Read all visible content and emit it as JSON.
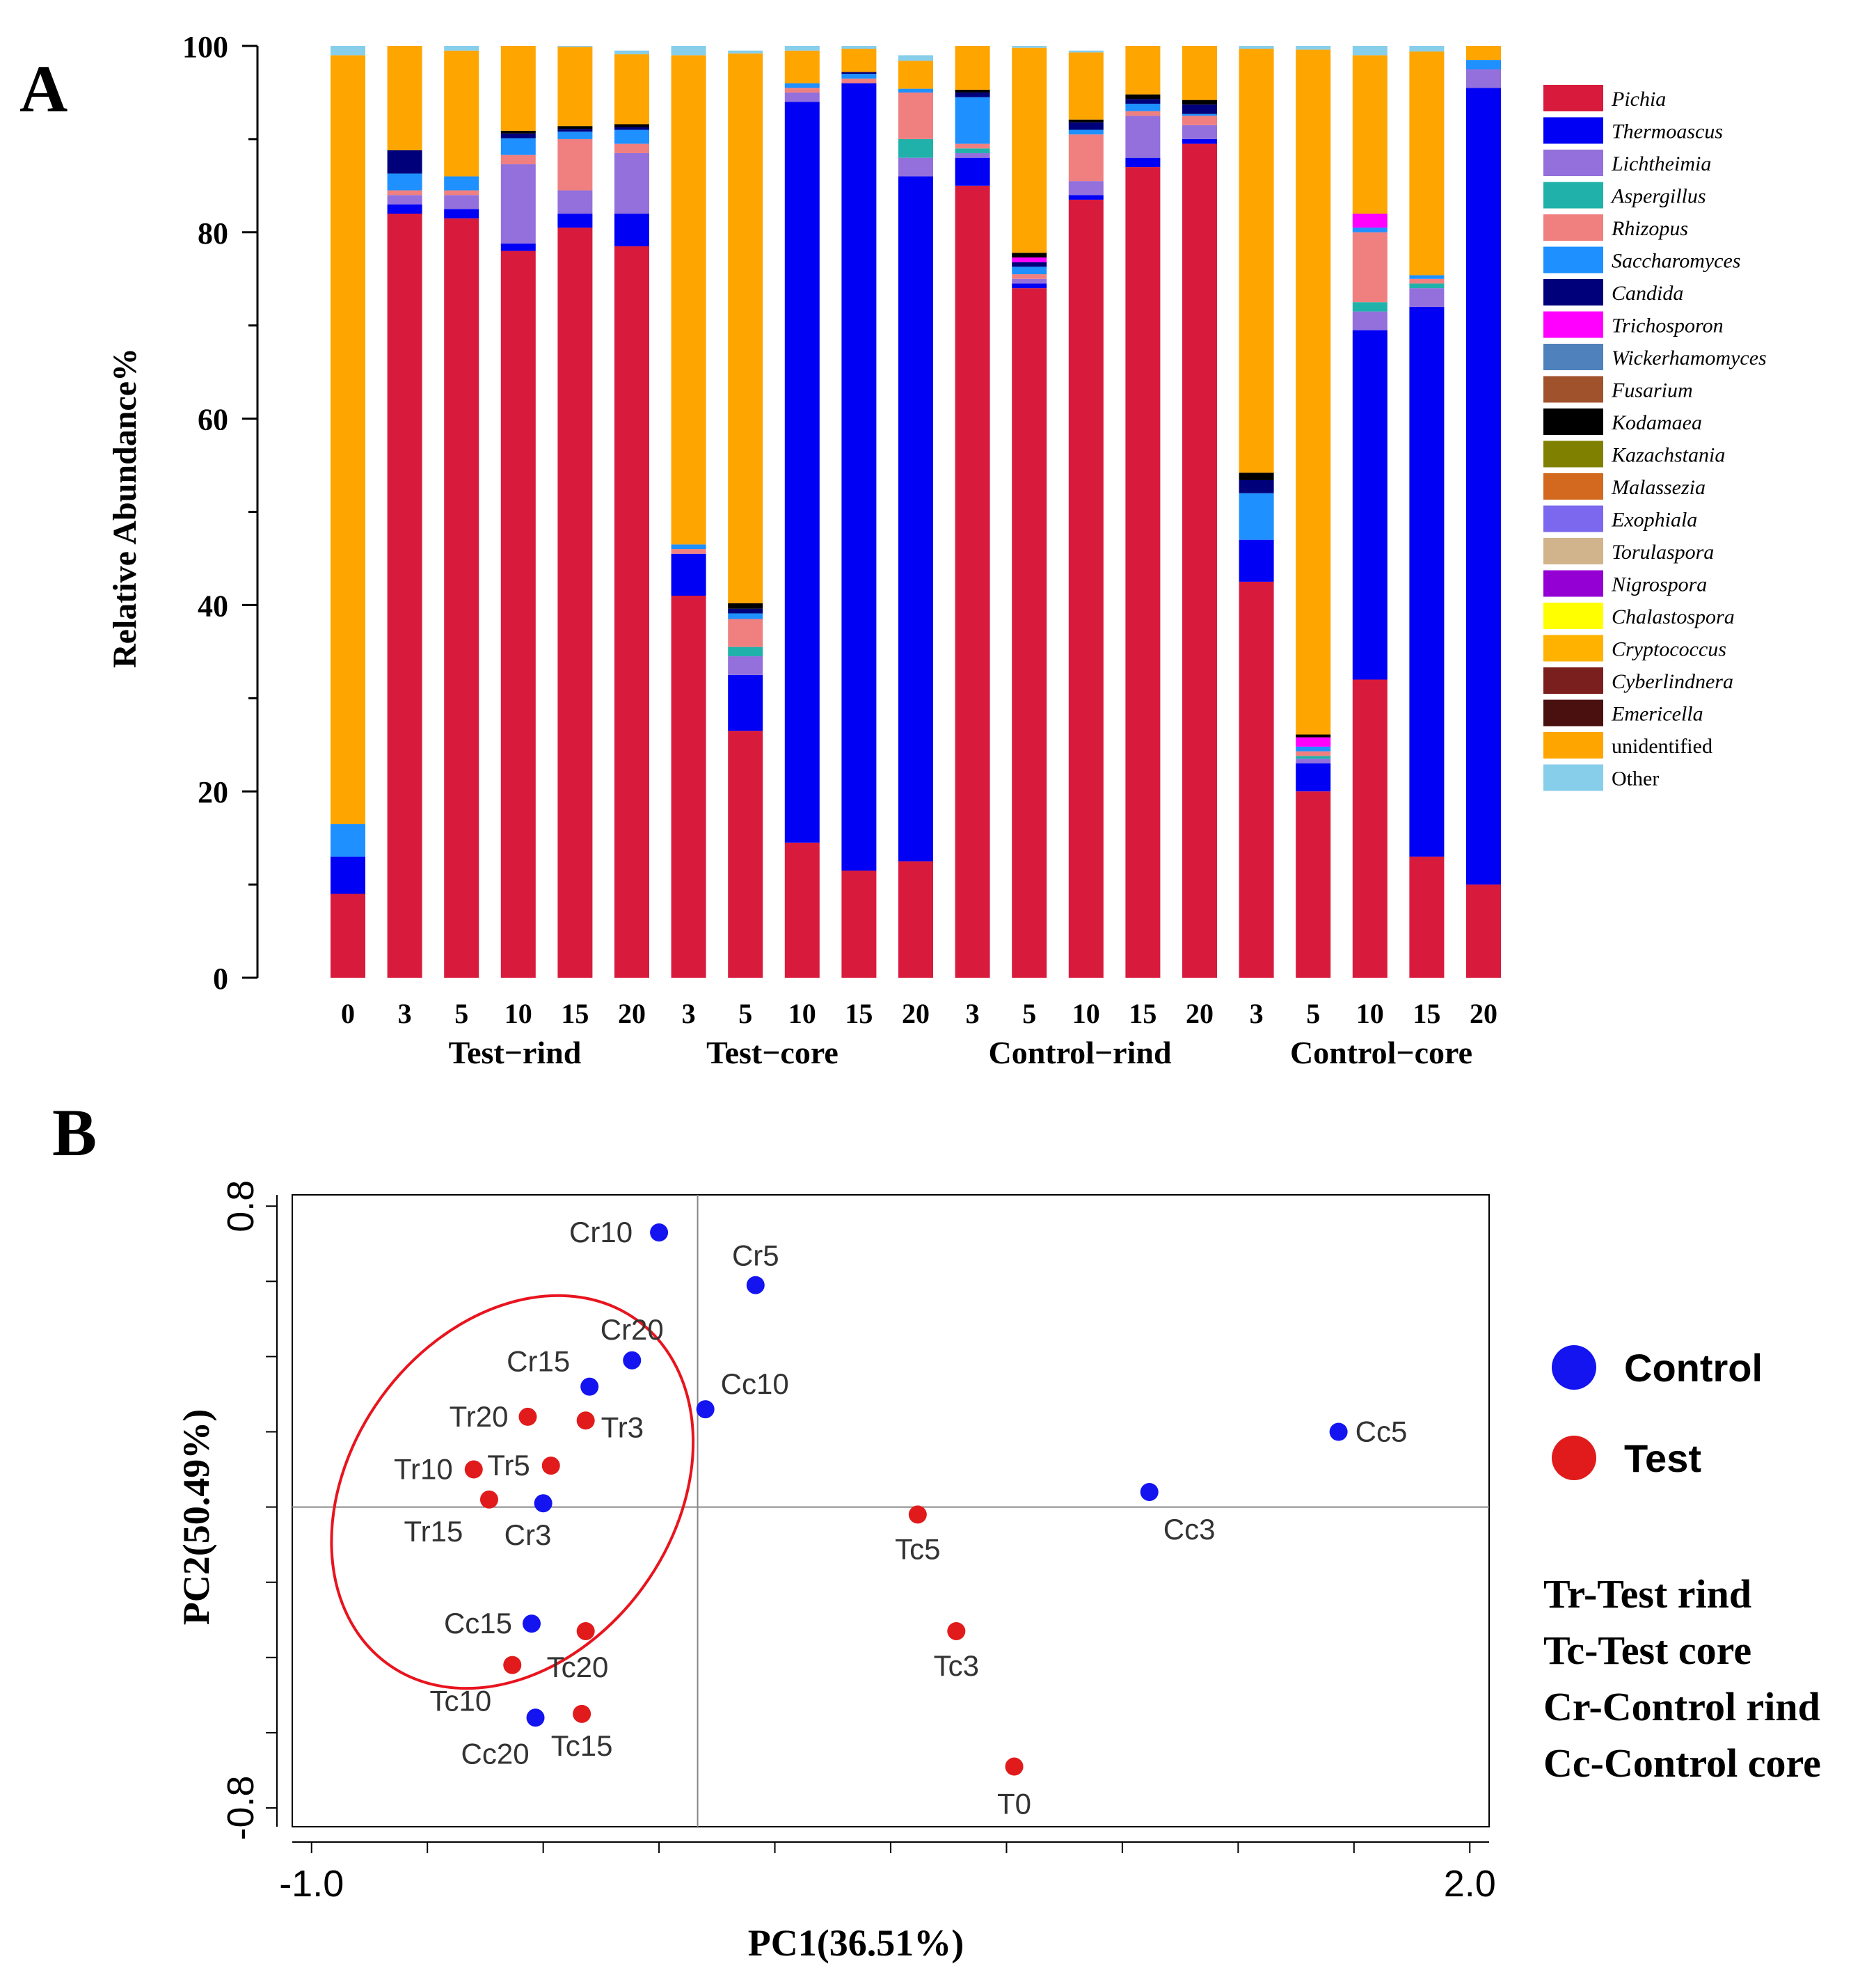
{
  "panel_a_label": "A",
  "panel_b_label": "B",
  "chart_data": [
    {
      "type": "bar",
      "stacked": true,
      "ylabel": "Relative Abundance%",
      "ylim": [
        0,
        100
      ],
      "yticks": [
        0,
        20,
        40,
        60,
        80,
        100
      ],
      "categories": [
        "0",
        "3",
        "5",
        "10",
        "15",
        "20",
        "3",
        "5",
        "10",
        "15",
        "20",
        "3",
        "5",
        "10",
        "15",
        "20",
        "3",
        "5",
        "10",
        "15",
        "20"
      ],
      "groups": [
        {
          "label": "Test−rind"
        },
        {
          "label": "Test−core"
        },
        {
          "label": "Control−rind"
        },
        {
          "label": "Control−core"
        }
      ],
      "legend": [
        {
          "name": "Pichia",
          "color": "#d81b3c"
        },
        {
          "name": "Thermoascus",
          "color": "#0000f5"
        },
        {
          "name": "Lichtheimia",
          "color": "#9370db"
        },
        {
          "name": "Aspergillus",
          "color": "#20b2aa"
        },
        {
          "name": "Rhizopus",
          "color": "#f08080"
        },
        {
          "name": "Saccharomyces",
          "color": "#1e90ff"
        },
        {
          "name": "Candida",
          "color": "#00007a"
        },
        {
          "name": "Trichosporon",
          "color": "#ff00ff"
        },
        {
          "name": "Wickerhamomyces",
          "color": "#4f81bd"
        },
        {
          "name": "Fusarium",
          "color": "#a0522d"
        },
        {
          "name": "Kodamaea",
          "color": "#000000"
        },
        {
          "name": "Kazachstania",
          "color": "#808000"
        },
        {
          "name": "Malassezia",
          "color": "#d2691e"
        },
        {
          "name": "Exophiala",
          "color": "#7b68ee"
        },
        {
          "name": "Torulaspora",
          "color": "#d2b48c"
        },
        {
          "name": "Nigrospora",
          "color": "#9400d3"
        },
        {
          "name": "Chalastospora",
          "color": "#ffff00"
        },
        {
          "name": "Cryptococcus",
          "color": "#ffb300"
        },
        {
          "name": "Cyberlindnera",
          "color": "#7b1e1e"
        },
        {
          "name": "Emericella",
          "color": "#4a0f0f"
        },
        {
          "name": "unidentified",
          "color": "#ffa500"
        },
        {
          "name": "Other",
          "color": "#87ceeb"
        }
      ],
      "series": [
        {
          "name": "Pichia",
          "values": [
            9,
            82,
            81.5,
            78,
            80.5,
            78.5,
            41,
            26.5,
            14.5,
            11.5,
            12.5,
            85,
            74,
            83.5,
            87,
            89.5,
            42.5,
            20,
            32,
            13,
            10
          ]
        },
        {
          "name": "Thermoascus",
          "values": [
            4,
            1,
            1,
            0.8,
            1.5,
            3.5,
            4.5,
            6,
            79.5,
            84.5,
            73.5,
            3,
            0.5,
            0.5,
            1,
            0.5,
            4.5,
            3,
            37.5,
            59,
            85.5
          ]
        },
        {
          "name": "Lichtheimia",
          "values": [
            0,
            1,
            1.5,
            8.5,
            2.5,
            6.5,
            0,
            2,
            1,
            0,
            2,
            0.5,
            0.5,
            1.5,
            4.5,
            1.5,
            0,
            0.5,
            2,
            2,
            2
          ]
        },
        {
          "name": "Aspergillus",
          "values": [
            0,
            0,
            0,
            0,
            0,
            0,
            0,
            1,
            0,
            0,
            2,
            0.5,
            0,
            0,
            0,
            0,
            0,
            0.3,
            1,
            0.5,
            0
          ]
        },
        {
          "name": "Rhizopus",
          "values": [
            0,
            0.5,
            0.5,
            1,
            5.5,
            1,
            0.5,
            3,
            0.5,
            0.5,
            5,
            0.5,
            0.5,
            5,
            0.5,
            1,
            0,
            0.5,
            7.5,
            0.5,
            0
          ]
        },
        {
          "name": "Saccharomyces",
          "values": [
            3.5,
            1.8,
            1.5,
            1.8,
            0.8,
            1.5,
            0.5,
            0.6,
            0.5,
            0.5,
            0.4,
            5,
            0.8,
            0.5,
            0.8,
            0.2,
            5,
            0.5,
            0.5,
            0.4,
            1
          ]
        },
        {
          "name": "Candida",
          "values": [
            0,
            2.5,
            0,
            0.5,
            0.3,
            0.3,
            0,
            0.5,
            0,
            0.2,
            0,
            0.5,
            0.5,
            0.8,
            0.5,
            1,
            1.4,
            0,
            0,
            0,
            0
          ]
        },
        {
          "name": "Trichosporon",
          "values": [
            0,
            0,
            0,
            0,
            0,
            0,
            0,
            0,
            0,
            0,
            0,
            0,
            0.5,
            0,
            0,
            0,
            0,
            1,
            1.5,
            0,
            0
          ]
        },
        {
          "name": "Kodamaea",
          "values": [
            0,
            0,
            0,
            0.3,
            0.3,
            0.3,
            0,
            0.6,
            0,
            0,
            0,
            0.3,
            0.5,
            0.3,
            0.5,
            0.5,
            0.8,
            0.3,
            0,
            0,
            0
          ]
        },
        {
          "name": "unidentified",
          "values": [
            82.5,
            11.5,
            13.5,
            9.5,
            8.5,
            7.5,
            52.5,
            59,
            3.5,
            2.5,
            3,
            6,
            22,
            7.2,
            5.5,
            6,
            45.5,
            73.5,
            17,
            24,
            1.5
          ]
        },
        {
          "name": "Other",
          "values": [
            1,
            0,
            0.5,
            0.3,
            0.1,
            0.4,
            1,
            0.3,
            0.5,
            0.3,
            0.6,
            0.2,
            0.2,
            0.2,
            0.2,
            0.3,
            0.3,
            0.4,
            1,
            0.6,
            0.5
          ]
        }
      ]
    },
    {
      "type": "scatter",
      "xlabel": "PC1(36.51%)",
      "ylabel": "PC2(50.49%)",
      "xlim": [
        -1.05,
        2.05
      ],
      "ylim": [
        -0.85,
        0.83
      ],
      "xtick_labels": [
        {
          "value": -1.0,
          "label": "-1.0"
        },
        {
          "value": 2.0,
          "label": "2.0"
        }
      ],
      "ytick_labels": [
        {
          "value": 0.8,
          "label": "0.8"
        },
        {
          "value": -0.8,
          "label": "-0.8"
        }
      ],
      "minor_xticks": [
        -1.0,
        -0.7,
        -0.4,
        -0.1,
        0.2,
        0.5,
        0.8,
        1.1,
        1.4,
        1.7,
        2.0
      ],
      "minor_yticks": [
        -0.8,
        -0.6,
        -0.4,
        -0.2,
        0.0,
        0.2,
        0.4,
        0.6,
        0.8
      ],
      "reference_lines": {
        "x": 0,
        "y": 0
      },
      "ellipse": {
        "cx": -0.48,
        "cy": 0.04,
        "rx": 0.55,
        "ry": 0.43,
        "angle_deg": 54,
        "color": "#e8141e"
      },
      "legend": [
        {
          "name": "Control",
          "color": "#1414f0"
        },
        {
          "name": "Test",
          "color": "#e11b1b"
        }
      ],
      "abbreviations": [
        "Tr-Test rind",
        "Tc-Test core",
        "Cr-Control rind",
        "Cc-Control core"
      ],
      "points": [
        {
          "label": "Cr10",
          "group": "Control",
          "x": -0.1,
          "y": 0.73
        },
        {
          "label": "Cr5",
          "group": "Control",
          "x": 0.15,
          "y": 0.59
        },
        {
          "label": "Cr20",
          "group": "Control",
          "x": -0.17,
          "y": 0.39
        },
        {
          "label": "Cr15",
          "group": "Control",
          "x": -0.28,
          "y": 0.32
        },
        {
          "label": "Cc10",
          "group": "Control",
          "x": 0.02,
          "y": 0.26
        },
        {
          "label": "Cc5",
          "group": "Control",
          "x": 1.66,
          "y": 0.2
        },
        {
          "label": "Cc3",
          "group": "Control",
          "x": 1.17,
          "y": 0.04
        },
        {
          "label": "Cr3",
          "group": "Control",
          "x": -0.4,
          "y": 0.01
        },
        {
          "label": "Cc15",
          "group": "Control",
          "x": -0.43,
          "y": -0.31
        },
        {
          "label": "Cc20",
          "group": "Control",
          "x": -0.42,
          "y": -0.56
        },
        {
          "label": "Tr20",
          "group": "Test",
          "x": -0.44,
          "y": 0.24
        },
        {
          "label": "Tr3",
          "group": "Test",
          "x": -0.29,
          "y": 0.23
        },
        {
          "label": "Tr5",
          "group": "Test",
          "x": -0.38,
          "y": 0.11
        },
        {
          "label": "Tr10",
          "group": "Test",
          "x": -0.58,
          "y": 0.1
        },
        {
          "label": "Tr15",
          "group": "Test",
          "x": -0.54,
          "y": 0.02
        },
        {
          "label": "Tc5",
          "group": "Test",
          "x": 0.57,
          "y": -0.02
        },
        {
          "label": "Tc3",
          "group": "Test",
          "x": 0.67,
          "y": -0.33
        },
        {
          "label": "Tc20",
          "group": "Test",
          "x": -0.29,
          "y": -0.33
        },
        {
          "label": "Tc10",
          "group": "Test",
          "x": -0.48,
          "y": -0.42
        },
        {
          "label": "Tc15",
          "group": "Test",
          "x": -0.3,
          "y": -0.55
        },
        {
          "label": "T0",
          "group": "Test",
          "x": 0.82,
          "y": -0.69
        }
      ]
    }
  ]
}
